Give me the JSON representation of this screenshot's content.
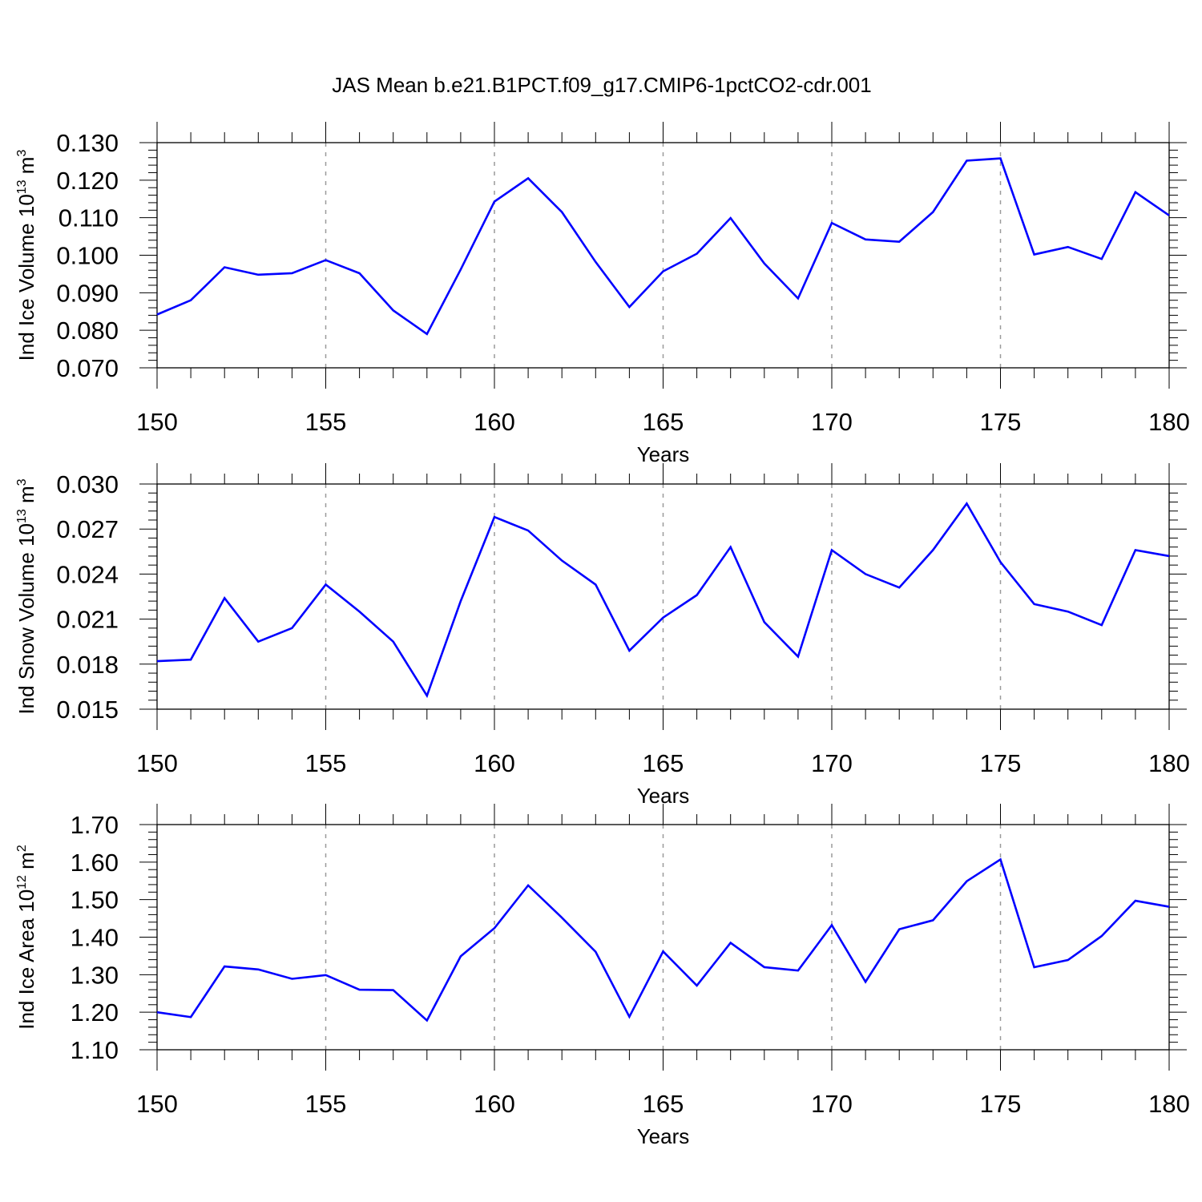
{
  "figure_title": "JAS Mean b.e21.B1PCT.f09_g17.CMIP6-1pctCO2-cdr.001",
  "chart_data": [
    {
      "type": "line",
      "ylabel": "Ind Ice Volume 10",
      "ylabel_exp": "13",
      "ylabel_unit": " m",
      "ylabel_unit_exp": "3",
      "xlabel": "Years",
      "xlim": [
        150,
        180
      ],
      "ylim": [
        0.07,
        0.13
      ],
      "ymajor_step": 0.01,
      "yminor_step": 0.002,
      "ydecimals": 3,
      "x_ticks": [
        150,
        155,
        160,
        165,
        170,
        175,
        180
      ],
      "x_tick_labels": [
        "150",
        "155",
        "160",
        "165",
        "170",
        "175",
        "180"
      ],
      "y_tick_labels": [
        "0.070",
        "0.080",
        "0.090",
        "0.100",
        "0.110",
        "0.120",
        "0.130"
      ],
      "x": [
        150,
        151,
        152,
        153,
        154,
        155,
        156,
        157,
        158,
        159,
        160,
        161,
        162,
        163,
        164,
        165,
        166,
        167,
        168,
        169,
        170,
        171,
        172,
        173,
        174,
        175,
        176,
        177,
        178,
        179,
        180
      ],
      "series": [
        {
          "name": "Ind Ice Volume",
          "color": "#0000ff",
          "values": [
            0.0842,
            0.088,
            0.0968,
            0.0948,
            0.0952,
            0.0987,
            0.0952,
            0.0853,
            0.079,
            0.0962,
            0.1143,
            0.1205,
            0.1115,
            0.0982,
            0.0862,
            0.0957,
            0.1004,
            0.1099,
            0.0978,
            0.0885,
            0.1086,
            0.1042,
            0.1036,
            0.1115,
            0.1252,
            0.1258,
            0.1002,
            0.1022,
            0.099,
            0.1168,
            0.1106
          ]
        }
      ]
    },
    {
      "type": "line",
      "ylabel": "Ind Snow Volume 10",
      "ylabel_exp": "13",
      "ylabel_unit": " m",
      "ylabel_unit_exp": "3",
      "xlabel": "Years",
      "xlim": [
        150,
        180
      ],
      "ylim": [
        0.015,
        0.03
      ],
      "ymajor_step": 0.003,
      "yminor_step": 0.0006,
      "ydecimals": 3,
      "x_ticks": [
        150,
        155,
        160,
        165,
        170,
        175,
        180
      ],
      "x_tick_labels": [
        "150",
        "155",
        "160",
        "165",
        "170",
        "175",
        "180"
      ],
      "y_tick_labels": [
        "0.015",
        "0.018",
        "0.021",
        "0.024",
        "0.027",
        "0.030"
      ],
      "x": [
        150,
        151,
        152,
        153,
        154,
        155,
        156,
        157,
        158,
        159,
        160,
        161,
        162,
        163,
        164,
        165,
        166,
        167,
        168,
        169,
        170,
        171,
        172,
        173,
        174,
        175,
        176,
        177,
        178,
        179,
        180
      ],
      "series": [
        {
          "name": "Ind Snow Volume",
          "color": "#0000ff",
          "values": [
            0.0182,
            0.0183,
            0.0224,
            0.0195,
            0.0204,
            0.0233,
            0.0215,
            0.0195,
            0.0159,
            0.0222,
            0.0278,
            0.0269,
            0.0249,
            0.0233,
            0.0189,
            0.0211,
            0.0226,
            0.0258,
            0.0208,
            0.0185,
            0.0256,
            0.024,
            0.0231,
            0.0256,
            0.0287,
            0.0248,
            0.022,
            0.0215,
            0.0206,
            0.0256,
            0.0252
          ]
        }
      ]
    },
    {
      "type": "line",
      "ylabel": "Ind Ice Area 10",
      "ylabel_exp": "12",
      "ylabel_unit": " m",
      "ylabel_unit_exp": "2",
      "xlabel": "Years",
      "xlim": [
        150,
        180
      ],
      "ylim": [
        1.1,
        1.7
      ],
      "ymajor_step": 0.1,
      "yminor_step": 0.02,
      "ydecimals": 2,
      "x_ticks": [
        150,
        155,
        160,
        165,
        170,
        175,
        180
      ],
      "x_tick_labels": [
        "150",
        "155",
        "160",
        "165",
        "170",
        "175",
        "180"
      ],
      "y_tick_labels": [
        "1.10",
        "1.20",
        "1.30",
        "1.40",
        "1.50",
        "1.60",
        "1.70"
      ],
      "x": [
        150,
        151,
        152,
        153,
        154,
        155,
        156,
        157,
        158,
        159,
        160,
        161,
        162,
        163,
        164,
        165,
        166,
        167,
        168,
        169,
        170,
        171,
        172,
        173,
        174,
        175,
        176,
        177,
        178,
        179,
        180
      ],
      "series": [
        {
          "name": "Ind Ice Area",
          "color": "#0000ff",
          "values": [
            1.2,
            1.187,
            1.322,
            1.314,
            1.289,
            1.299,
            1.26,
            1.259,
            1.178,
            1.349,
            1.424,
            1.538,
            1.452,
            1.361,
            1.188,
            1.362,
            1.271,
            1.385,
            1.32,
            1.311,
            1.432,
            1.281,
            1.421,
            1.445,
            1.549,
            1.607,
            1.32,
            1.339,
            1.403,
            1.497,
            1.481
          ]
        }
      ]
    }
  ]
}
